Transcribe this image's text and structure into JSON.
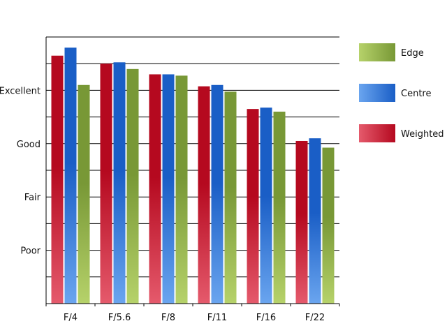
{
  "chart_data": {
    "type": "bar",
    "title": "",
    "xlabel": "",
    "ylabel": "",
    "categories": [
      "F/4",
      "F/5.6",
      "F/8",
      "F/11",
      "F/16",
      "F/22"
    ],
    "y_tick_labels": [
      {
        "value": 2,
        "label": "Poor"
      },
      {
        "value": 4,
        "label": "Fair"
      },
      {
        "value": 6,
        "label": "Good"
      },
      {
        "value": 8,
        "label": "Excellent"
      }
    ],
    "ylim": [
      0,
      10
    ],
    "grid": true,
    "legend_position": "right",
    "series": [
      {
        "name": "Weighted",
        "values": [
          9.3,
          9.0,
          8.6,
          8.15,
          7.3,
          6.1
        ],
        "color_dark": "#b5091f",
        "color_light": "#e55a6c"
      },
      {
        "name": "Centre",
        "values": [
          9.6,
          9.05,
          8.6,
          8.2,
          7.35,
          6.2
        ],
        "color_dark": "#1a5ec6",
        "color_light": "#6aa5ef"
      },
      {
        "name": "Edge",
        "values": [
          8.2,
          8.8,
          8.55,
          7.95,
          7.2,
          5.85
        ],
        "color_dark": "#789836",
        "color_light": "#b6d26a"
      }
    ],
    "legend_order": [
      "Edge",
      "Centre",
      "Weighted"
    ]
  }
}
